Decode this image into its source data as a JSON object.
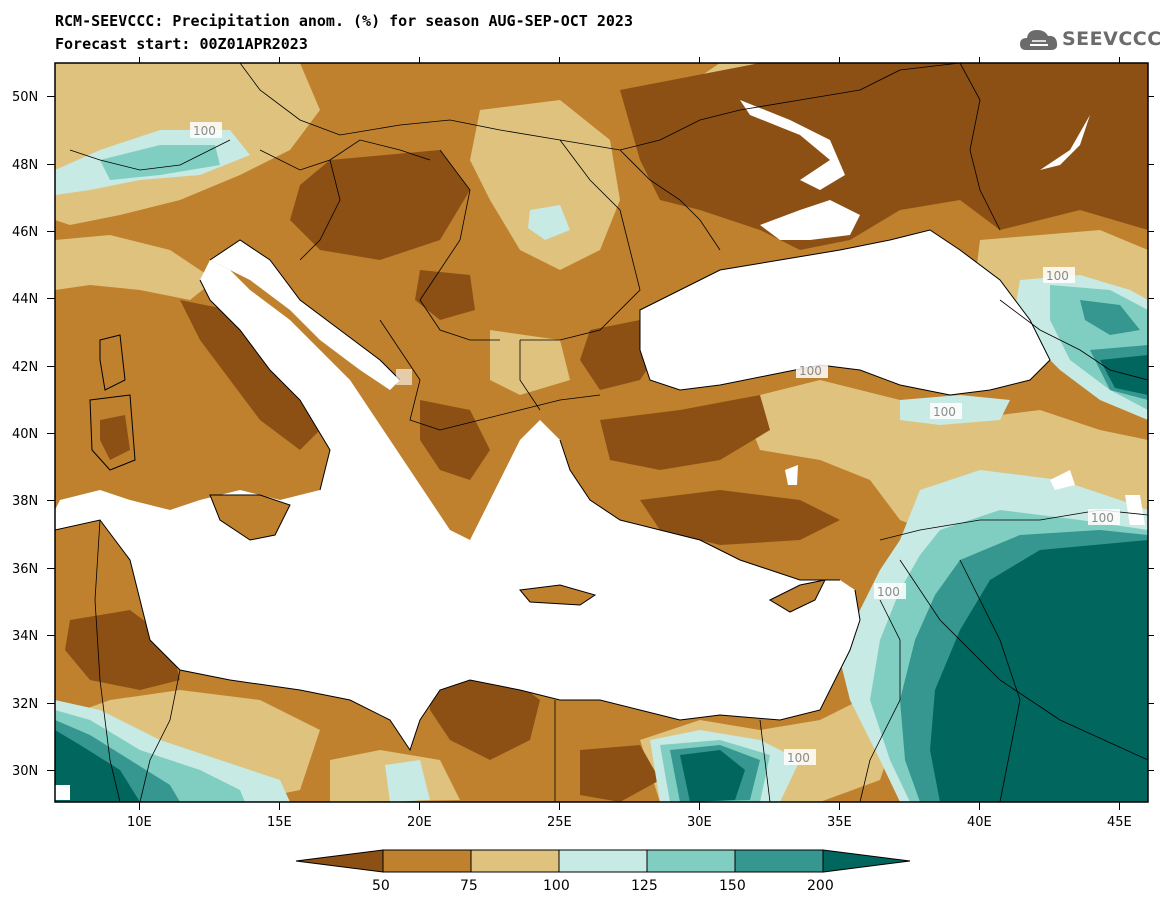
{
  "header": {
    "title": "RCM-SEEVCCC: Precipitation anom. (%) for season AUG-SEP-OCT 2023",
    "subtitle": "Forecast start: 00Z01APR2023",
    "logo_text": "SEEVCCC"
  },
  "map": {
    "lon_ticks": [
      "10E",
      "15E",
      "20E",
      "25E",
      "30E",
      "35E",
      "40E",
      "45E"
    ],
    "lat_ticks": [
      "50N",
      "48N",
      "46N",
      "44N",
      "42N",
      "40N",
      "38N",
      "36N",
      "34N",
      "32N",
      "30N"
    ],
    "contour_labels": [
      "100",
      "100",
      "100",
      "100",
      "100",
      "100",
      "100",
      "100"
    ]
  },
  "colorbar": {
    "labels": [
      "50",
      "75",
      "100",
      "125",
      "150",
      "200"
    ],
    "colors": [
      "#8c5014",
      "#bf812d",
      "#dfc27d",
      "#c7eae5",
      "#80cdc1",
      "#35978f",
      "#01665e"
    ]
  },
  "palette": {
    "dark_brown": "#8c5014",
    "brown": "#bf812d",
    "tan": "#dfc27d",
    "light_teal": "#c7eae5",
    "teal": "#80cdc1",
    "dark_teal": "#35978f",
    "deep_teal": "#01665e"
  }
}
